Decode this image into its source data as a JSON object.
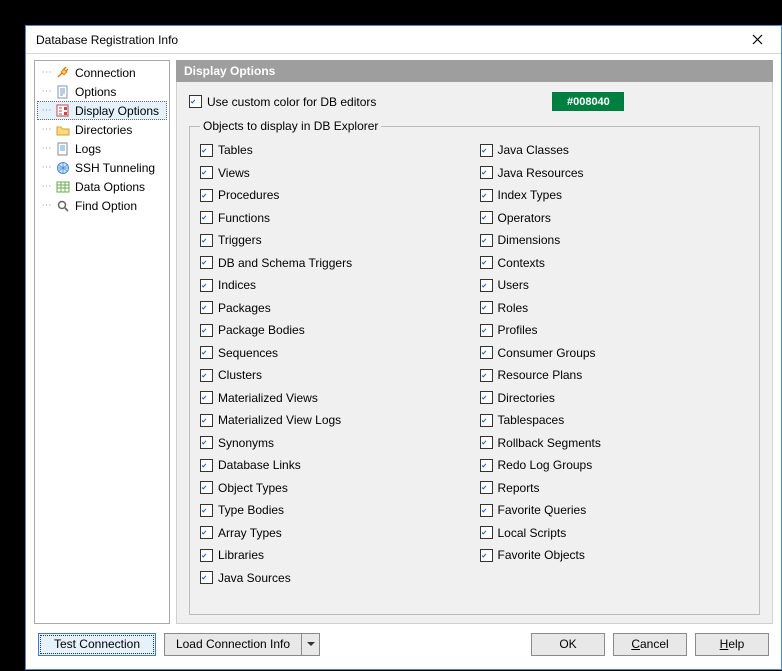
{
  "window": {
    "title": "Database Registration Info"
  },
  "sidebar": {
    "items": [
      {
        "label": "Connection",
        "icon": "plug",
        "selected": false
      },
      {
        "label": "Options",
        "icon": "doc",
        "selected": false
      },
      {
        "label": "Display Options",
        "icon": "disp",
        "selected": true
      },
      {
        "label": "Directories",
        "icon": "folder",
        "selected": false
      },
      {
        "label": "Logs",
        "icon": "logs",
        "selected": false
      },
      {
        "label": "SSH Tunneling",
        "icon": "ssh",
        "selected": false
      },
      {
        "label": "Data Options",
        "icon": "data",
        "selected": false
      },
      {
        "label": "Find Option",
        "icon": "find",
        "selected": false
      }
    ]
  },
  "section": {
    "header": "Display Options",
    "custom_color_label": "Use custom color for DB editors",
    "custom_color_checked": true,
    "color_value": "#008040",
    "group_label": "Objects to display in DB Explorer"
  },
  "objects_left": [
    "Tables",
    "Views",
    "Procedures",
    "Functions",
    "Triggers",
    "DB and Schema Triggers",
    "Indices",
    "Packages",
    "Package Bodies",
    "Sequences",
    "Clusters",
    "Materialized Views",
    "Materialized View Logs",
    "Synonyms",
    "Database Links",
    "Object Types",
    "Type Bodies",
    "Array Types",
    "Libraries",
    "Java Sources"
  ],
  "objects_right": [
    "Java Classes",
    "Java Resources",
    "Index Types",
    "Operators",
    "Dimensions",
    "Contexts",
    "Users",
    "Roles",
    "Profiles",
    "Consumer Groups",
    "Resource Plans",
    "Directories",
    "Tablespaces",
    "Rollback Segments",
    "Redo Log Groups",
    "Reports",
    "Favorite Queries",
    "Local Scripts",
    "Favorite Objects"
  ],
  "footer": {
    "test": "Test Connection",
    "load": "Load Connection Info",
    "ok": "OK",
    "cancel": "Cancel",
    "help": "Help"
  },
  "colors": {
    "accent": "#008040",
    "section_header_bg": "#9e9e9e",
    "panel_bg": "#f0f0f0",
    "window_border": "#4a8ad0"
  }
}
